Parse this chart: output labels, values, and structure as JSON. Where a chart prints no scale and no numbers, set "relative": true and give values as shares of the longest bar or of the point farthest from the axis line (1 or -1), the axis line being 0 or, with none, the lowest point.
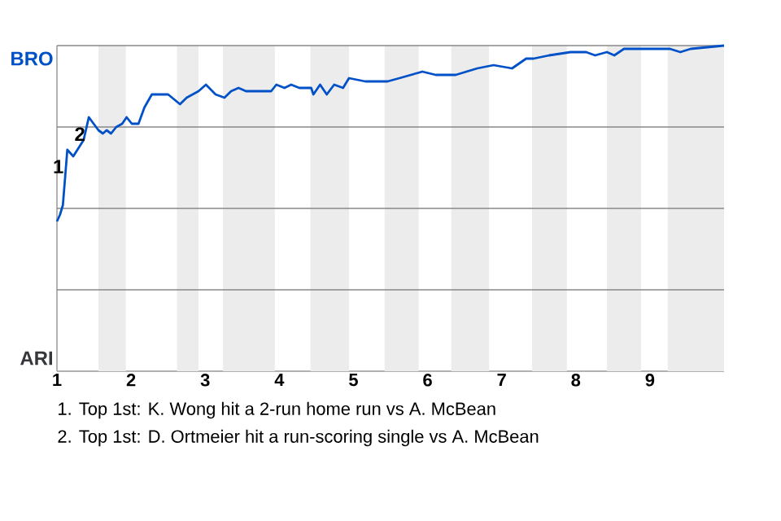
{
  "chart_data": {
    "type": "line",
    "relative": true,
    "x": [
      1.0,
      1.04,
      1.08,
      1.14,
      1.22,
      1.36,
      1.43,
      1.56,
      1.62,
      1.67,
      1.73,
      1.8,
      1.88,
      1.94,
      2.01,
      2.1,
      2.18,
      2.28,
      2.5,
      2.66,
      2.75,
      2.91,
      3.01,
      3.14,
      3.26,
      3.35,
      3.45,
      3.55,
      3.89,
      3.96,
      4.07,
      4.16,
      4.27,
      4.43,
      4.46,
      4.55,
      4.64,
      4.74,
      4.86,
      4.94,
      5.16,
      5.46,
      5.62,
      5.93,
      6.11,
      6.38,
      6.67,
      6.89,
      7.14,
      7.33,
      7.43,
      7.64,
      7.93,
      8.14,
      8.26,
      8.42,
      8.52,
      8.65,
      8.79,
      9.27,
      9.41,
      9.55,
      10.0
    ],
    "series": [
      {
        "color": "#0050c8",
        "values": [
          0.46,
          0.48,
          0.51,
          0.68,
          0.66,
          0.71,
          0.78,
          0.74,
          0.73,
          0.74,
          0.73,
          0.75,
          0.76,
          0.78,
          0.76,
          0.76,
          0.81,
          0.85,
          0.85,
          0.82,
          0.84,
          0.86,
          0.88,
          0.85,
          0.84,
          0.86,
          0.87,
          0.86,
          0.86,
          0.88,
          0.87,
          0.88,
          0.87,
          0.87,
          0.85,
          0.88,
          0.85,
          0.88,
          0.87,
          0.9,
          0.89,
          0.89,
          0.9,
          0.92,
          0.91,
          0.91,
          0.93,
          0.94,
          0.93,
          0.96,
          0.96,
          0.97,
          0.98,
          0.98,
          0.97,
          0.98,
          0.97,
          0.99,
          0.99,
          0.99,
          0.98,
          0.99,
          1.0
        ]
      }
    ],
    "xlim": [
      1,
      10
    ],
    "xticks": [
      1,
      2,
      3,
      4,
      5,
      6,
      7,
      8,
      9
    ],
    "ref_lines": [
      {
        "axis": "y",
        "value": 0.25,
        "color": "#888888"
      },
      {
        "axis": "y",
        "value": 0.5,
        "color": "#888888"
      },
      {
        "axis": "y",
        "value": 0.75,
        "color": "#888888"
      },
      {
        "axis": "y",
        "value": 1,
        "color": "#888888"
      }
    ],
    "bands": [
      {
        "axis": "x",
        "from": 1.56,
        "to": 1.93,
        "color": "#ececec"
      },
      {
        "axis": "x",
        "from": 2.62,
        "to": 2.91,
        "color": "#ececec"
      },
      {
        "axis": "x",
        "from": 3.24,
        "to": 3.94,
        "color": "#ececec"
      },
      {
        "axis": "x",
        "from": 4.42,
        "to": 4.94,
        "color": "#ececec"
      },
      {
        "axis": "x",
        "from": 5.42,
        "to": 5.88,
        "color": "#ececec"
      },
      {
        "axis": "x",
        "from": 6.32,
        "to": 6.83,
        "color": "#ececec"
      },
      {
        "axis": "x",
        "from": 7.41,
        "to": 7.88,
        "color": "#ececec"
      },
      {
        "axis": "x",
        "from": 8.42,
        "to": 8.88,
        "color": "#ececec"
      },
      {
        "axis": "x",
        "from": 9.24,
        "to": 10,
        "color": "#ececec"
      }
    ],
    "annotations": [
      {
        "text": "1",
        "x": 1.14,
        "y": 0.68
      },
      {
        "text": "2",
        "x": 1.43,
        "y": 0.78
      },
      "BRO",
      "ARI",
      "1. Top 1st: K. Wong hit a 2-run home run vs A. McBean",
      "2. Top 1st: D. Ortmeier hit a run-scoring single vs A. McBean"
    ]
  }
}
